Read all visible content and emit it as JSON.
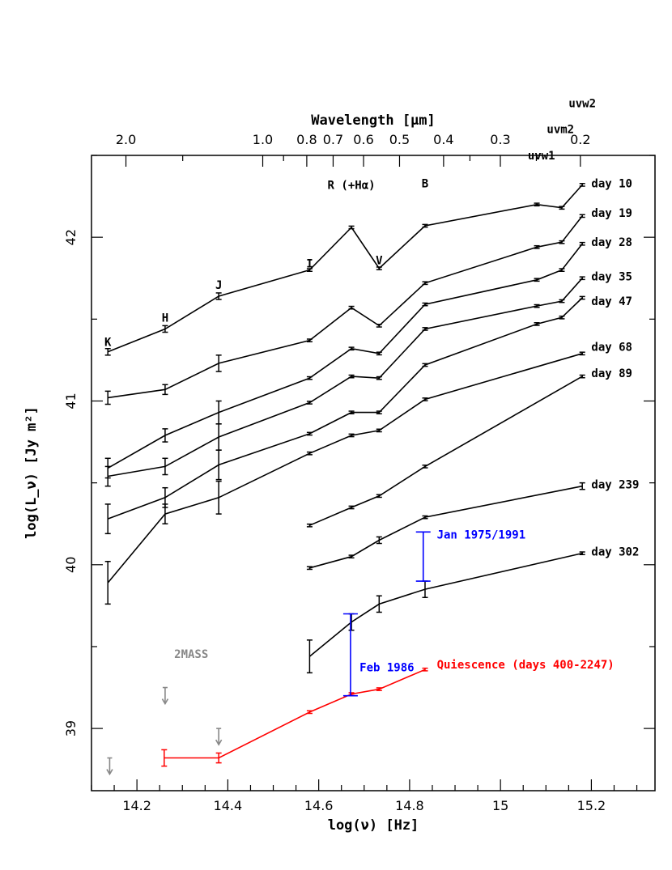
{
  "chart_data": {
    "type": "line",
    "xlabel": "log(ν) [Hz]",
    "ylabel": "log(L_ν) [Jy m²]",
    "top_xlabel": "Wavelength [μm]",
    "xlim": [
      14.1,
      15.34
    ],
    "ylim": [
      38.62,
      42.5
    ],
    "x_ticks": [
      14.2,
      14.4,
      14.6,
      14.8,
      15,
      15.2
    ],
    "y_ticks": [
      39,
      40,
      41,
      42
    ],
    "top_ticks": [
      {
        "label": "2.0",
        "value": 2.0
      },
      {
        "label": "1.0",
        "value": 1.0
      },
      {
        "label": "0.8",
        "value": 0.8
      },
      {
        "label": "0.7",
        "value": 0.7
      },
      {
        "label": "0.6",
        "value": 0.6
      },
      {
        "label": "0.5",
        "value": 0.5
      },
      {
        "label": "0.4",
        "value": 0.4
      },
      {
        "label": "0.3",
        "value": 0.3
      },
      {
        "label": "0.2",
        "value": 0.2
      }
    ],
    "band_labels": [
      {
        "text": "K",
        "x": 14.136,
        "y": 41.36
      },
      {
        "text": "H",
        "x": 14.262,
        "y": 41.51
      },
      {
        "text": "J",
        "x": 14.38,
        "y": 41.71
      },
      {
        "text": "I",
        "x": 14.58,
        "y": 41.84
      },
      {
        "text": "R (+Hα)",
        "x": 14.672,
        "y": 42.32
      },
      {
        "text": "V",
        "x": 14.733,
        "y": 41.86
      },
      {
        "text": "B",
        "x": 14.834,
        "y": 42.33
      },
      {
        "text": "uvw1",
        "x": 15.09,
        "y": 42.5
      },
      {
        "text": "uvm2",
        "x": 15.132,
        "y": 42.66
      },
      {
        "text": "uvw2",
        "x": 15.18,
        "y": 42.82
      }
    ],
    "series": [
      {
        "name": "day 10",
        "color": "#000000",
        "x": [
          14.136,
          14.262,
          14.38,
          14.58,
          14.672,
          14.733,
          14.834,
          15.08,
          15.135,
          15.18
        ],
        "y": [
          41.3,
          41.44,
          41.64,
          41.8,
          42.06,
          41.81,
          42.07,
          42.2,
          42.18,
          42.32
        ],
        "err": [
          0.02,
          0.02,
          0.02,
          0,
          0,
          0,
          0,
          0,
          0,
          0
        ]
      },
      {
        "name": "day 19",
        "color": "#000000",
        "x": [
          14.136,
          14.262,
          14.38,
          14.58,
          14.672,
          14.733,
          14.834,
          15.08,
          15.135,
          15.18
        ],
        "y": [
          41.02,
          41.07,
          41.23,
          41.37,
          41.57,
          41.46,
          41.72,
          41.94,
          41.97,
          42.13
        ],
        "err": [
          0.04,
          0.03,
          0.05,
          0,
          0,
          0,
          0,
          0,
          0,
          0
        ]
      },
      {
        "name": "day 28",
        "color": "#000000",
        "x": [
          14.136,
          14.262,
          14.38,
          14.58,
          14.672,
          14.733,
          14.834,
          15.08,
          15.135,
          15.18
        ],
        "y": [
          40.59,
          40.79,
          40.93,
          41.14,
          41.32,
          41.29,
          41.59,
          41.74,
          41.8,
          41.96
        ],
        "err": [
          0.06,
          0.04,
          0.07,
          0,
          0,
          0,
          0,
          0,
          0,
          0
        ]
      },
      {
        "name": "day 35",
        "color": "#000000",
        "x": [
          14.136,
          14.262,
          14.38,
          14.58,
          14.672,
          14.733,
          14.834,
          15.08,
          15.135,
          15.18
        ],
        "y": [
          40.54,
          40.6,
          40.78,
          40.99,
          41.15,
          41.14,
          41.44,
          41.58,
          41.61,
          41.75
        ],
        "err": [
          0.06,
          0.05,
          0.08,
          0,
          0,
          0,
          0,
          0,
          0,
          0
        ]
      },
      {
        "name": "day 47",
        "color": "#000000",
        "x": [
          14.136,
          14.262,
          14.38,
          14.58,
          14.672,
          14.733,
          14.834,
          15.08,
          15.135,
          15.18
        ],
        "y": [
          40.28,
          40.41,
          40.61,
          40.8,
          40.93,
          40.93,
          41.22,
          41.47,
          41.51,
          41.63
        ],
        "err": [
          0.09,
          0.06,
          0.09,
          0,
          0,
          0,
          0,
          0,
          0,
          0
        ]
      },
      {
        "name": "day 68",
        "color": "#000000",
        "x": [
          14.136,
          14.262,
          14.38,
          14.58,
          14.672,
          14.733,
          14.834,
          15.18
        ],
        "y": [
          39.89,
          40.31,
          40.41,
          40.68,
          40.79,
          40.82,
          41.01,
          41.29
        ],
        "err": [
          0.13,
          0.06,
          0.1,
          0,
          0,
          0,
          0,
          0
        ]
      },
      {
        "name": "day 89",
        "color": "#000000",
        "x": [
          14.58,
          14.672,
          14.733,
          14.834,
          15.18
        ],
        "y": [
          40.24,
          40.35,
          40.42,
          40.6,
          41.15
        ],
        "err": [
          0,
          0,
          0,
          0,
          0
        ]
      },
      {
        "name": "day 239",
        "color": "#000000",
        "x": [
          14.58,
          14.672,
          14.733,
          14.834,
          15.18
        ],
        "y": [
          39.98,
          40.05,
          40.15,
          40.29,
          40.48
        ],
        "err": [
          0,
          0,
          0.02,
          0,
          0.02
        ]
      },
      {
        "name": "day 302",
        "color": "#000000",
        "x": [
          14.58,
          14.672,
          14.733,
          14.834,
          15.18
        ],
        "y": [
          39.44,
          39.65,
          39.76,
          39.85,
          40.07
        ],
        "err": [
          0.1,
          0.05,
          0.05,
          0.05,
          0
        ]
      },
      {
        "name": "Quiescence (days 400-2247)",
        "color": "#ff0000",
        "x": [
          14.26,
          14.38,
          14.58,
          14.672,
          14.733,
          14.834
        ],
        "y": [
          38.82,
          38.82,
          39.1,
          39.21,
          39.24,
          39.36
        ],
        "err": [
          0.05,
          0.03,
          0,
          0,
          0,
          0
        ]
      }
    ],
    "series_labels": [
      {
        "text": "day 10",
        "x": 15.2,
        "y": 42.33
      },
      {
        "text": "day 19",
        "x": 15.2,
        "y": 42.15
      },
      {
        "text": "day 28",
        "x": 15.2,
        "y": 41.97
      },
      {
        "text": "day 35",
        "x": 15.2,
        "y": 41.76
      },
      {
        "text": "day 47",
        "x": 15.2,
        "y": 41.61
      },
      {
        "text": "day 68",
        "x": 15.2,
        "y": 41.33
      },
      {
        "text": "day 89",
        "x": 15.2,
        "y": 41.17
      },
      {
        "text": "day 239",
        "x": 15.2,
        "y": 40.49
      },
      {
        "text": "day 302",
        "x": 15.2,
        "y": 40.08
      },
      {
        "text": "Quiescence (days 400-2247)",
        "x": 14.86,
        "y": 39.39
      }
    ],
    "historical": [
      {
        "label": "Jan 1975/1991",
        "color": "#0000ff",
        "x": 14.83,
        "ymin": 39.9,
        "ymax": 40.2,
        "label_x": 14.86,
        "label_y": 40.18
      },
      {
        "label": "Feb 1986",
        "color": "#0000ff",
        "x": 14.67,
        "ymin": 39.2,
        "ymax": 39.7,
        "label_x": 14.69,
        "label_y": 39.37
      }
    ],
    "upper_limits": {
      "label": "2MASS",
      "color": "#888888",
      "points": [
        {
          "x": 14.14,
          "y": 38.82
        },
        {
          "x": 14.262,
          "y": 39.25
        },
        {
          "x": 14.38,
          "y": 39.0
        }
      ],
      "label_x": 14.282,
      "label_y": 39.45
    }
  }
}
